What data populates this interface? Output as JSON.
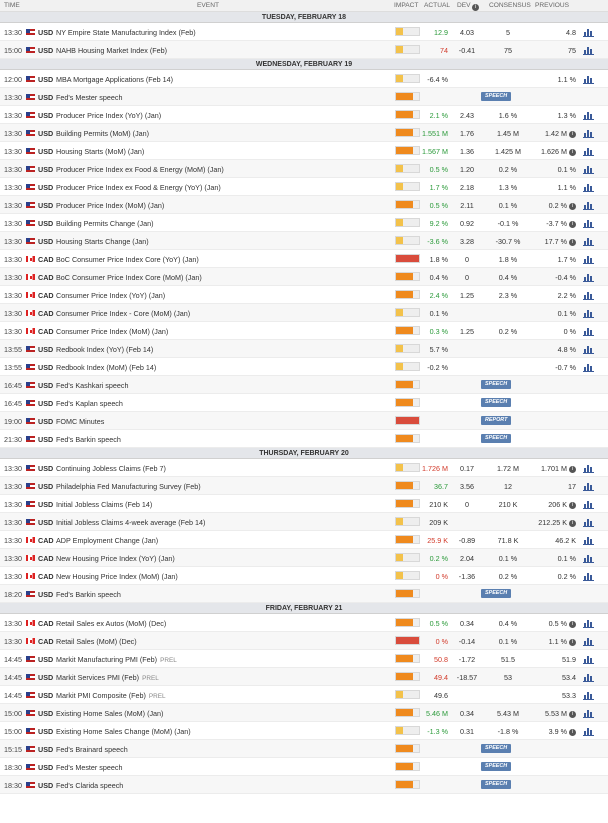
{
  "header": {
    "time": "TIME",
    "event": "EVENT",
    "impact": "IMPACT",
    "actual": "ACTUAL",
    "dev": "DEV",
    "consensus": "CONSENSUS",
    "previous": "PREVIOUS"
  },
  "sections": [
    {
      "day": "TUESDAY, FEBRUARY 18",
      "rows": [
        {
          "time": "13:30",
          "cur": "USD",
          "event": "NY Empire State Manufacturing Index (Feb)",
          "impact": "low",
          "actual": "12.9",
          "actual_color": "pos",
          "dev": "4.03",
          "cons": "5",
          "prev": "4.8"
        },
        {
          "time": "15:00",
          "cur": "USD",
          "event": "NAHB Housing Market Index (Feb)",
          "impact": "low",
          "actual": "74",
          "actual_color": "neg",
          "dev": "-0.41",
          "cons": "75",
          "prev": "75"
        }
      ]
    },
    {
      "day": "WEDNESDAY, FEBRUARY 19",
      "rows": [
        {
          "time": "12:00",
          "cur": "USD",
          "event": "MBA Mortgage Applications (Feb 14)",
          "impact": "low",
          "actual": "-6.4 %",
          "prev": "1.1 %"
        },
        {
          "time": "13:30",
          "cur": "USD",
          "event": "Fed's Mester speech",
          "impact": "med",
          "badge": "SPEECH"
        },
        {
          "time": "13:30",
          "cur": "USD",
          "event": "Producer Price Index (YoY) (Jan)",
          "impact": "med",
          "actual": "2.1 %",
          "actual_color": "pos",
          "dev": "2.43",
          "cons": "1.6 %",
          "prev": "1.3 %"
        },
        {
          "time": "13:30",
          "cur": "USD",
          "event": "Building Permits (MoM) (Jan)",
          "impact": "med",
          "actual": "1.551 M",
          "actual_color": "pos",
          "dev": "1.76",
          "cons": "1.45 M",
          "prev": "1.42 M",
          "prev_info": true
        },
        {
          "time": "13:30",
          "cur": "USD",
          "event": "Housing Starts (MoM) (Jan)",
          "impact": "med",
          "actual": "1.567 M",
          "actual_color": "pos",
          "dev": "1.36",
          "cons": "1.425 M",
          "prev": "1.626 M",
          "prev_info": true
        },
        {
          "time": "13:30",
          "cur": "USD",
          "event": "Producer Price Index ex Food & Energy (MoM) (Jan)",
          "impact": "low",
          "actual": "0.5 %",
          "actual_color": "pos",
          "dev": "1.20",
          "cons": "0.2 %",
          "prev": "0.1 %"
        },
        {
          "time": "13:30",
          "cur": "USD",
          "event": "Producer Price Index ex Food & Energy (YoY) (Jan)",
          "impact": "low",
          "actual": "1.7 %",
          "actual_color": "pos",
          "dev": "2.18",
          "cons": "1.3 %",
          "prev": "1.1 %"
        },
        {
          "time": "13:30",
          "cur": "USD",
          "event": "Producer Price Index (MoM) (Jan)",
          "impact": "med",
          "actual": "0.5 %",
          "actual_color": "pos",
          "dev": "2.11",
          "cons": "0.1 %",
          "prev": "0.2 %",
          "prev_info": true
        },
        {
          "time": "13:30",
          "cur": "USD",
          "event": "Building Permits Change (Jan)",
          "impact": "low",
          "actual": "9.2 %",
          "actual_color": "pos",
          "dev": "0.92",
          "cons": "-0.1 %",
          "prev": "-3.7 %",
          "prev_info": true
        },
        {
          "time": "13:30",
          "cur": "USD",
          "event": "Housing Starts Change (Jan)",
          "impact": "low",
          "actual": "-3.6 %",
          "actual_color": "pos",
          "dev": "3.28",
          "cons": "-30.7 %",
          "prev": "17.7 %",
          "prev_info": true
        },
        {
          "time": "13:30",
          "cur": "CAD",
          "event": "BoC Consumer Price Index Core (YoY) (Jan)",
          "impact": "high",
          "actual": "1.8 %",
          "dev": "0",
          "cons": "1.8 %",
          "prev": "1.7 %"
        },
        {
          "time": "13:30",
          "cur": "CAD",
          "event": "BoC Consumer Price Index Core (MoM) (Jan)",
          "impact": "med",
          "actual": "0.4 %",
          "dev": "0",
          "cons": "0.4 %",
          "prev": "-0.4 %"
        },
        {
          "time": "13:30",
          "cur": "CAD",
          "event": "Consumer Price Index (YoY) (Jan)",
          "impact": "med",
          "actual": "2.4 %",
          "actual_color": "pos",
          "dev": "1.25",
          "cons": "2.3 %",
          "prev": "2.2 %"
        },
        {
          "time": "13:30",
          "cur": "CAD",
          "event": "Consumer Price Index - Core (MoM) (Jan)",
          "impact": "low",
          "actual": "0.1 %",
          "prev": "0.1 %"
        },
        {
          "time": "13:30",
          "cur": "CAD",
          "event": "Consumer Price Index (MoM) (Jan)",
          "impact": "med",
          "actual": "0.3 %",
          "actual_color": "pos",
          "dev": "1.25",
          "cons": "0.2 %",
          "prev": "0 %"
        },
        {
          "time": "13:55",
          "cur": "USD",
          "event": "Redbook Index (YoY) (Feb 14)",
          "impact": "low",
          "actual": "5.7 %",
          "prev": "4.8 %"
        },
        {
          "time": "13:55",
          "cur": "USD",
          "event": "Redbook Index (MoM) (Feb 14)",
          "impact": "low",
          "actual": "-0.2 %",
          "prev": "-0.7 %"
        },
        {
          "time": "16:45",
          "cur": "USD",
          "event": "Fed's Kashkari speech",
          "impact": "med",
          "badge": "SPEECH"
        },
        {
          "time": "16:45",
          "cur": "USD",
          "event": "Fed's Kaplan speech",
          "impact": "med",
          "badge": "SPEECH"
        },
        {
          "time": "19:00",
          "cur": "USD",
          "event": "FOMC Minutes",
          "impact": "high",
          "badge": "REPORT"
        },
        {
          "time": "21:30",
          "cur": "USD",
          "event": "Fed's Barkin speech",
          "impact": "med",
          "badge": "SPEECH"
        }
      ]
    },
    {
      "day": "THURSDAY, FEBRUARY 20",
      "rows": [
        {
          "time": "13:30",
          "cur": "USD",
          "event": "Continuing Jobless Claims (Feb 7)",
          "impact": "low",
          "actual": "1.726 M",
          "actual_color": "neg",
          "dev": "0.17",
          "cons": "1.72 M",
          "prev": "1.701 M",
          "prev_info": true
        },
        {
          "time": "13:30",
          "cur": "USD",
          "event": "Philadelphia Fed Manufacturing Survey (Feb)",
          "impact": "med",
          "actual": "36.7",
          "actual_color": "pos",
          "dev": "3.56",
          "cons": "12",
          "prev": "17"
        },
        {
          "time": "13:30",
          "cur": "USD",
          "event": "Initial Jobless Claims (Feb 14)",
          "impact": "med",
          "actual": "210 K",
          "dev": "0",
          "cons": "210 K",
          "prev": "206 K",
          "prev_info": true
        },
        {
          "time": "13:30",
          "cur": "USD",
          "event": "Initial Jobless Claims 4-week average (Feb 14)",
          "impact": "low",
          "actual": "209 K",
          "prev": "212.25 K",
          "prev_info": true
        },
        {
          "time": "13:30",
          "cur": "CAD",
          "event": "ADP Employment Change (Jan)",
          "impact": "med",
          "actual": "25.9 K",
          "actual_color": "neg",
          "dev": "-0.89",
          "cons": "71.8 K",
          "prev": "46.2 K"
        },
        {
          "time": "13:30",
          "cur": "CAD",
          "event": "New Housing Price Index (YoY) (Jan)",
          "impact": "low",
          "actual": "0.2 %",
          "actual_color": "pos",
          "dev": "2.04",
          "cons": "0.1 %",
          "prev": "0.1 %"
        },
        {
          "time": "13:30",
          "cur": "CAD",
          "event": "New Housing Price Index (MoM) (Jan)",
          "impact": "low",
          "actual": "0 %",
          "actual_color": "neg",
          "dev": "-1.36",
          "cons": "0.2 %",
          "prev": "0.2 %"
        },
        {
          "time": "18:20",
          "cur": "USD",
          "event": "Fed's Barkin speech",
          "impact": "med",
          "badge": "SPEECH"
        }
      ]
    },
    {
      "day": "FRIDAY, FEBRUARY 21",
      "rows": [
        {
          "time": "13:30",
          "cur": "CAD",
          "event": "Retail Sales ex Autos (MoM) (Dec)",
          "impact": "med",
          "actual": "0.5 %",
          "actual_color": "pos",
          "dev": "0.34",
          "cons": "0.4 %",
          "prev": "0.5 %",
          "prev_info": true
        },
        {
          "time": "13:30",
          "cur": "CAD",
          "event": "Retail Sales (MoM) (Dec)",
          "impact": "high",
          "actual": "0 %",
          "actual_color": "neg",
          "dev": "-0.14",
          "cons": "0.1 %",
          "prev": "1.1 %",
          "prev_info": true
        },
        {
          "time": "14:45",
          "cur": "USD",
          "event": "Markit Manufacturing PMI (Feb)",
          "prel": "PREL",
          "impact": "med",
          "actual": "50.8",
          "actual_color": "neg",
          "dev": "-1.72",
          "cons": "51.5",
          "prev": "51.9"
        },
        {
          "time": "14:45",
          "cur": "USD",
          "event": "Markit Services PMI (Feb)",
          "prel": "PREL",
          "impact": "med",
          "actual": "49.4",
          "actual_color": "neg",
          "dev": "-18.57",
          "cons": "53",
          "prev": "53.4"
        },
        {
          "time": "14:45",
          "cur": "USD",
          "event": "Markit PMI Composite (Feb)",
          "prel": "PREL",
          "impact": "low",
          "actual": "49.6",
          "prev": "53.3"
        },
        {
          "time": "15:00",
          "cur": "USD",
          "event": "Existing Home Sales (MoM) (Jan)",
          "impact": "med",
          "actual": "5.46 M",
          "actual_color": "pos",
          "dev": "0.34",
          "cons": "5.43 M",
          "prev": "5.53 M",
          "prev_info": true
        },
        {
          "time": "15:00",
          "cur": "USD",
          "event": "Existing Home Sales Change (MoM) (Jan)",
          "impact": "low",
          "actual": "-1.3 %",
          "actual_color": "pos",
          "dev": "0.31",
          "cons": "-1.8 %",
          "prev": "3.9 %",
          "prev_info": true
        },
        {
          "time": "15:15",
          "cur": "USD",
          "event": "Fed's Brainard speech",
          "impact": "med",
          "badge": "SPEECH"
        },
        {
          "time": "18:30",
          "cur": "USD",
          "event": "Fed's Mester speech",
          "impact": "med",
          "badge": "SPEECH"
        },
        {
          "time": "18:30",
          "cur": "USD",
          "event": "Fed's Clarida speech",
          "impact": "med",
          "badge": "SPEECH"
        }
      ]
    }
  ],
  "icons": {
    "flag_usd": "us-flag-icon",
    "flag_cad": "canada-flag-icon",
    "chart": "bar-chart-icon",
    "info": "info-icon"
  },
  "colors": {
    "positive": "#2b9a3a",
    "negative": "#d23a2a",
    "impact_low": "#f3c24b",
    "impact_med": "#ef8a1e",
    "impact_high": "#d94c3c",
    "badge": "#5a7fb0"
  }
}
